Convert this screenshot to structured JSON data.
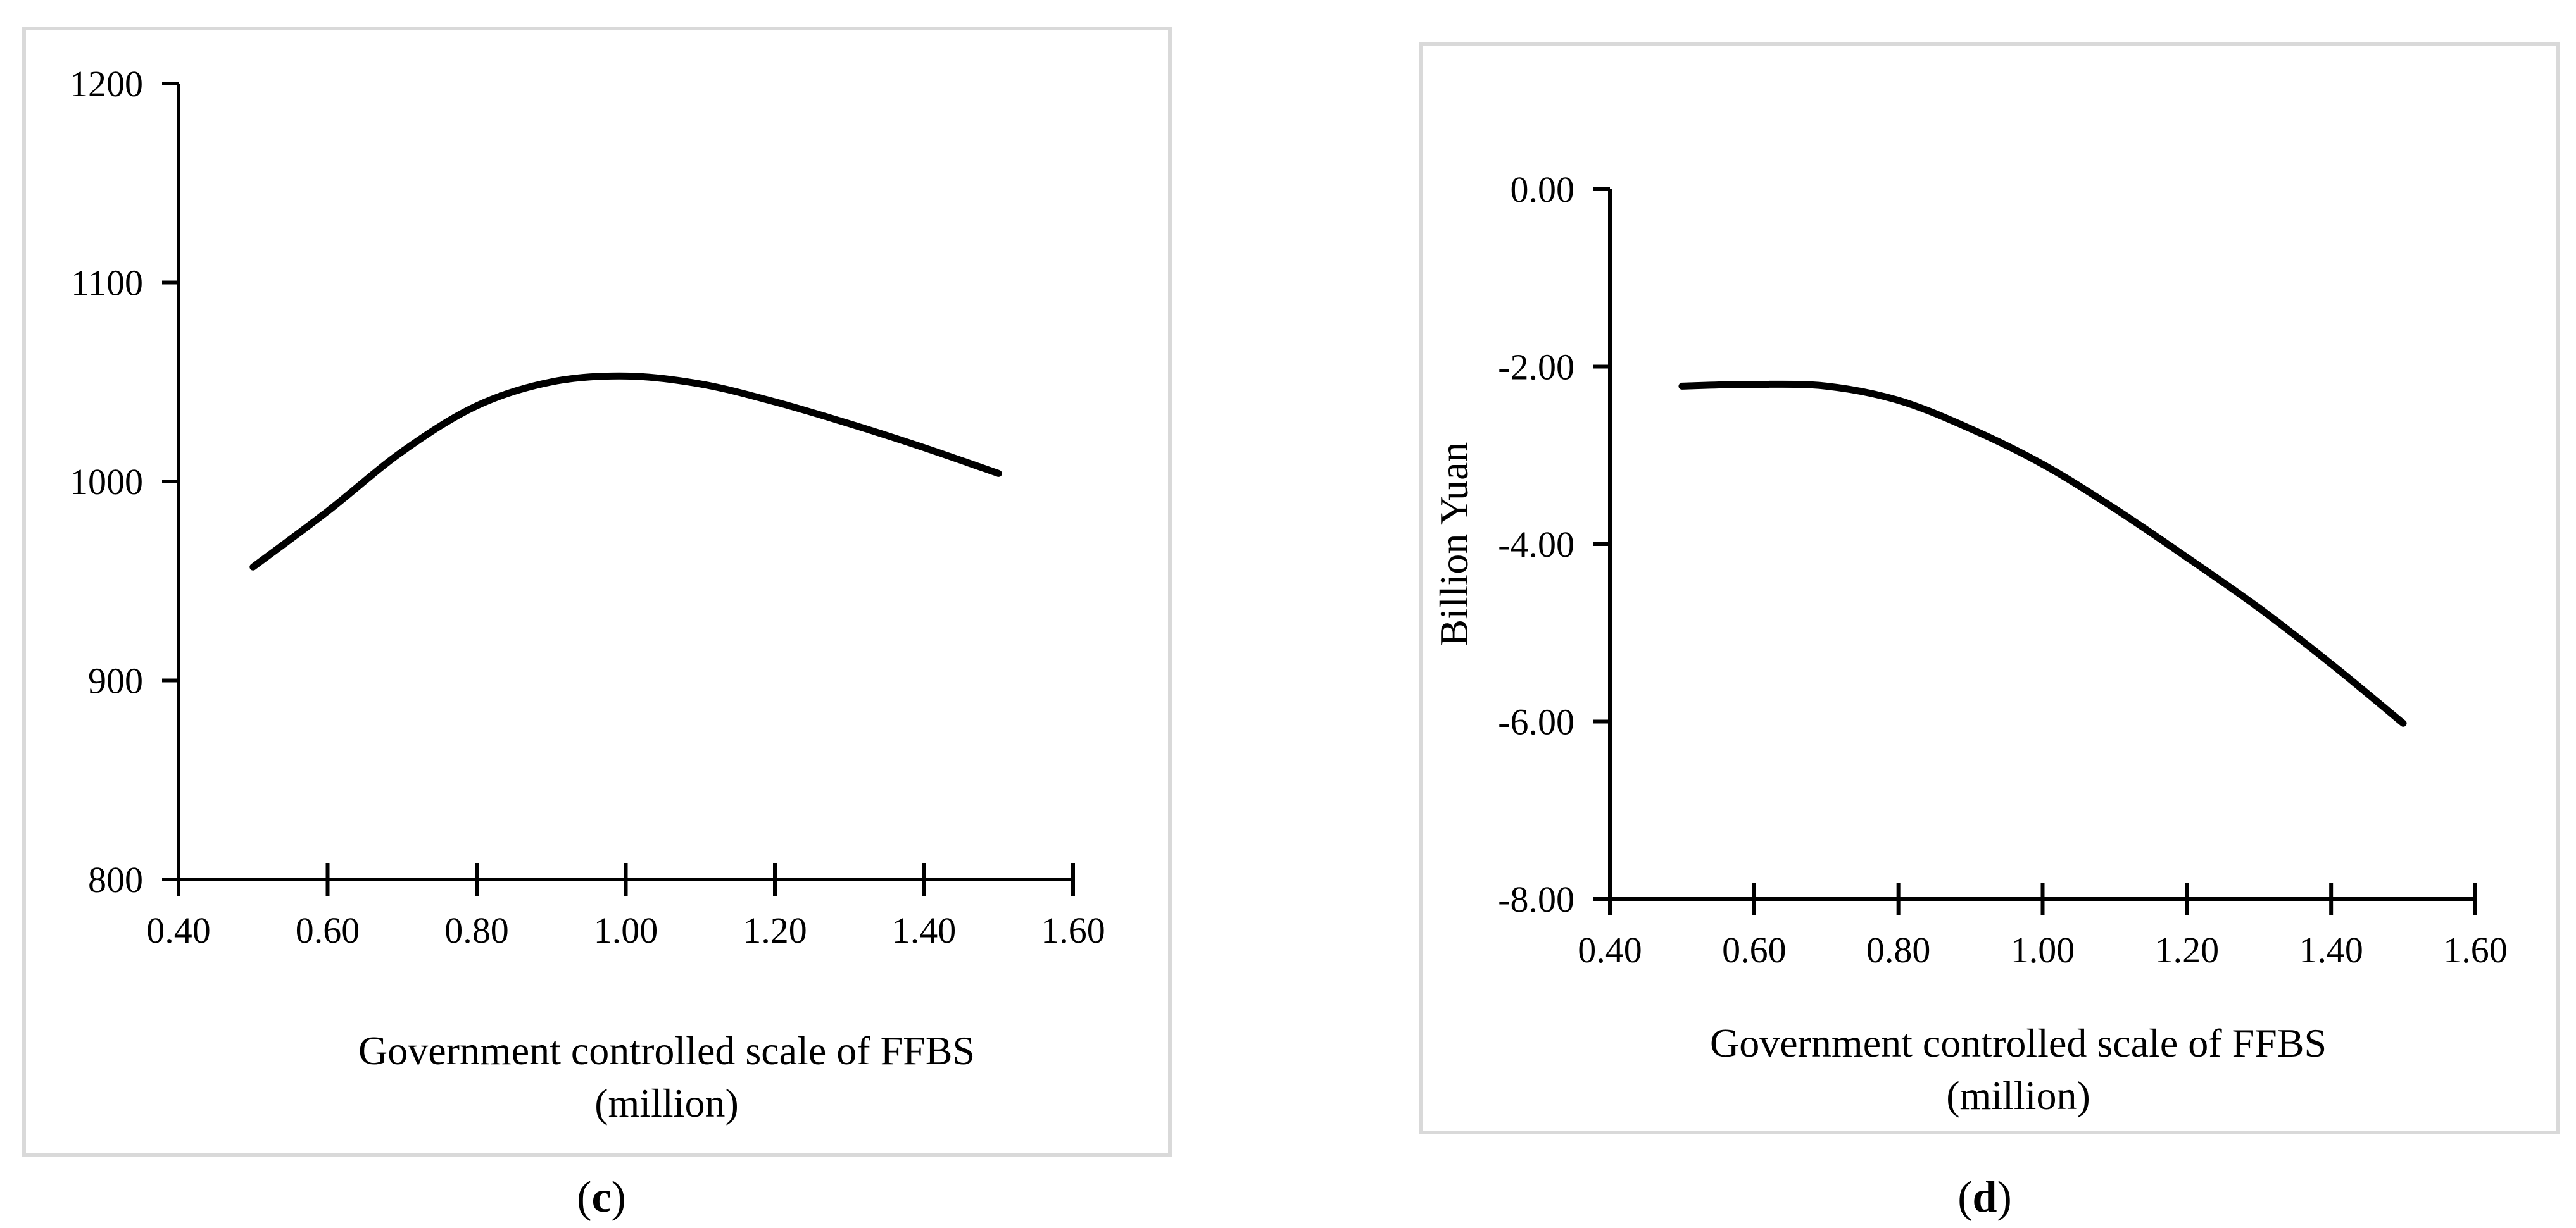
{
  "chart_data": [
    {
      "panel": "c",
      "type": "line",
      "xlabel": "Government controlled scale of FFBS",
      "xlabel_line2": "(million)",
      "ylabel": "",
      "xlim": [
        0.4,
        1.6
      ],
      "ylim": [
        800,
        1200
      ],
      "xticks": [
        "0.40",
        "0.60",
        "0.80",
        "1.00",
        "1.20",
        "1.40",
        "1.60"
      ],
      "yticks": [
        "800",
        "900",
        "1000",
        "1100",
        "1200"
      ],
      "series": [
        {
          "name": "c",
          "x": [
            0.5,
            0.6,
            0.7,
            0.8,
            0.9,
            1.0,
            1.1,
            1.2,
            1.3,
            1.4,
            1.5
          ],
          "y": [
            957,
            985,
            1015,
            1038,
            1050,
            1053,
            1049,
            1040,
            1029,
            1017,
            1004
          ]
        }
      ],
      "caption_open": "(",
      "caption_letter": "c",
      "caption_close": ")"
    },
    {
      "panel": "d",
      "type": "line",
      "xlabel": "Government controlled scale of FFBS",
      "xlabel_line2": "(million)",
      "ylabel": "Billion Yuan",
      "xlim": [
        0.4,
        1.6
      ],
      "ylim": [
        -8,
        0
      ],
      "xticks": [
        "0.40",
        "0.60",
        "0.80",
        "1.00",
        "1.20",
        "1.40",
        "1.60"
      ],
      "yticks": [
        "-8.00",
        "-6.00",
        "-4.00",
        "-2.00",
        "0.00"
      ],
      "series": [
        {
          "name": "d",
          "x": [
            0.5,
            0.6,
            0.7,
            0.8,
            0.9,
            1.0,
            1.1,
            1.2,
            1.3,
            1.4,
            1.5
          ],
          "y": [
            -2.22,
            -2.2,
            -2.22,
            -2.38,
            -2.7,
            -3.1,
            -3.6,
            -4.15,
            -4.72,
            -5.35,
            -6.02
          ]
        }
      ],
      "caption_open": "(",
      "caption_letter": "d",
      "caption_close": ")"
    }
  ]
}
